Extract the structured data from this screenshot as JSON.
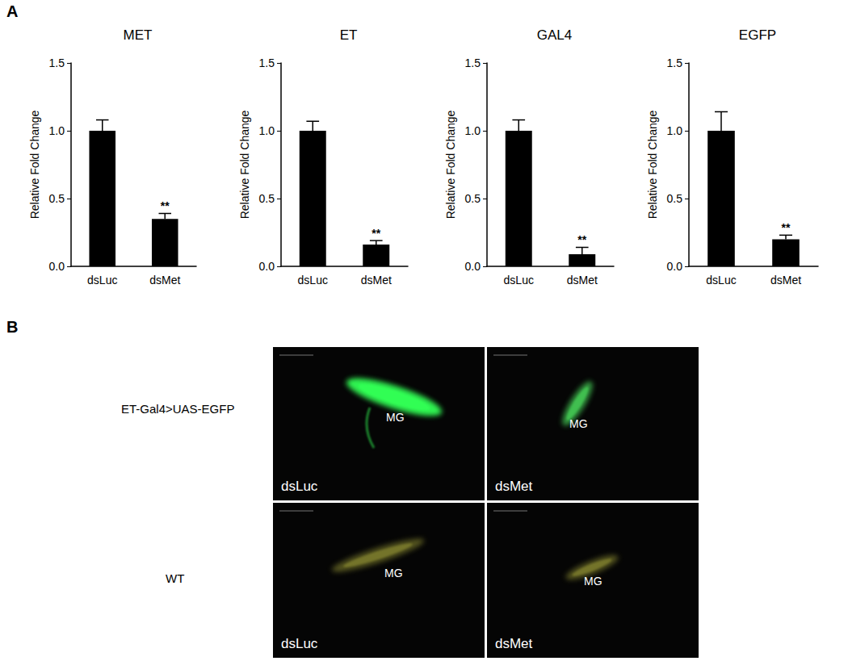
{
  "panel_labels": [
    "A",
    "B"
  ],
  "chart_data": [
    {
      "type": "bar",
      "title": "MET",
      "ylabel": "Relative Fold Change",
      "categories": [
        "dsLuc",
        "dsMet"
      ],
      "values": [
        1.0,
        0.35
      ],
      "errors": [
        0.08,
        0.04
      ],
      "significance": [
        null,
        "**"
      ],
      "color": "#000000",
      "ylim": [
        0,
        1.5
      ],
      "yticks": [
        {
          "value": 0,
          "label": "0.0"
        },
        0.5,
        {
          "value": 1,
          "label": "1.0"
        },
        1.5
      ],
      "grid": false
    },
    {
      "type": "bar",
      "title": "ET",
      "ylabel": "Relative Fold Change",
      "categories": [
        "dsLuc",
        "dsMet"
      ],
      "values": [
        1.0,
        0.16
      ],
      "errors": [
        0.07,
        0.03
      ],
      "significance": [
        null,
        "**"
      ],
      "color": "#000000",
      "ylim": [
        0,
        1.5
      ],
      "yticks": [
        {
          "value": 0,
          "label": "0.0"
        },
        0.5,
        {
          "value": 1,
          "label": "1.0"
        },
        1.5
      ],
      "grid": false
    },
    {
      "type": "bar",
      "title": "GAL4",
      "ylabel": "Relative Fold Change",
      "categories": [
        "dsLuc",
        "dsMet"
      ],
      "values": [
        1.0,
        0.09
      ],
      "errors": [
        0.08,
        0.05
      ],
      "significance": [
        null,
        "**"
      ],
      "color": "#000000",
      "ylim": [
        0,
        1.5
      ],
      "yticks": [
        {
          "value": 0,
          "label": "0.0"
        },
        0.5,
        {
          "value": 1,
          "label": "1.0"
        },
        1.5
      ],
      "grid": false
    },
    {
      "type": "bar",
      "title": "EGFP",
      "ylabel": "Relative Fold Change",
      "categories": [
        "dsLuc",
        "dsMet"
      ],
      "values": [
        1.0,
        0.2
      ],
      "errors": [
        0.14,
        0.03
      ],
      "significance": [
        null,
        "**"
      ],
      "color": "#000000",
      "ylim": [
        0,
        1.5
      ],
      "yticks": [
        {
          "value": 0,
          "label": "0.0"
        },
        0.5,
        {
          "value": 1,
          "label": "1.0"
        },
        1.5
      ],
      "grid": false
    }
  ],
  "image_panel": {
    "rows": [
      "ET-Gal4>UAS-EGFP",
      "WT"
    ],
    "columns": [
      "dsLuc",
      "dsMet"
    ],
    "tissue_label": "MG"
  }
}
